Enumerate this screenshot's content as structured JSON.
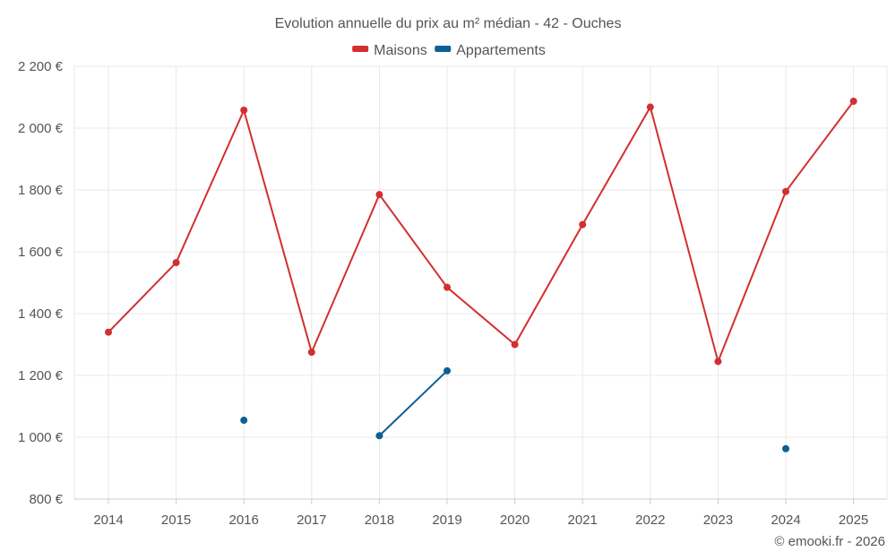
{
  "chart_data": {
    "type": "line",
    "title": "Evolution annuelle du prix au m² médian - 42 - Ouches",
    "categories": [
      "2014",
      "2015",
      "2016",
      "2017",
      "2018",
      "2019",
      "2020",
      "2021",
      "2022",
      "2023",
      "2024",
      "2025"
    ],
    "ylim": [
      800,
      2200
    ],
    "yticks": [
      800,
      1000,
      1200,
      1400,
      1600,
      1800,
      2000,
      2200
    ],
    "ytick_labels": [
      "800 €",
      "1 000 €",
      "1 200 €",
      "1 400 €",
      "1 600 €",
      "1 800 €",
      "2 000 €",
      "2 200 €"
    ],
    "grid": true,
    "legend_position": "top-center",
    "series": [
      {
        "name": "Maisons",
        "color": "#d32f2f",
        "values": [
          1340,
          1565,
          2058,
          1275,
          1785,
          1485,
          1300,
          1688,
          2068,
          1245,
          1795,
          2087
        ]
      },
      {
        "name": "Appartements",
        "color": "#0d5f94",
        "values": [
          null,
          null,
          1055,
          null,
          1005,
          1215,
          null,
          null,
          null,
          null,
          963,
          null
        ]
      }
    ]
  },
  "footer": "© emooki.fr - 2026"
}
